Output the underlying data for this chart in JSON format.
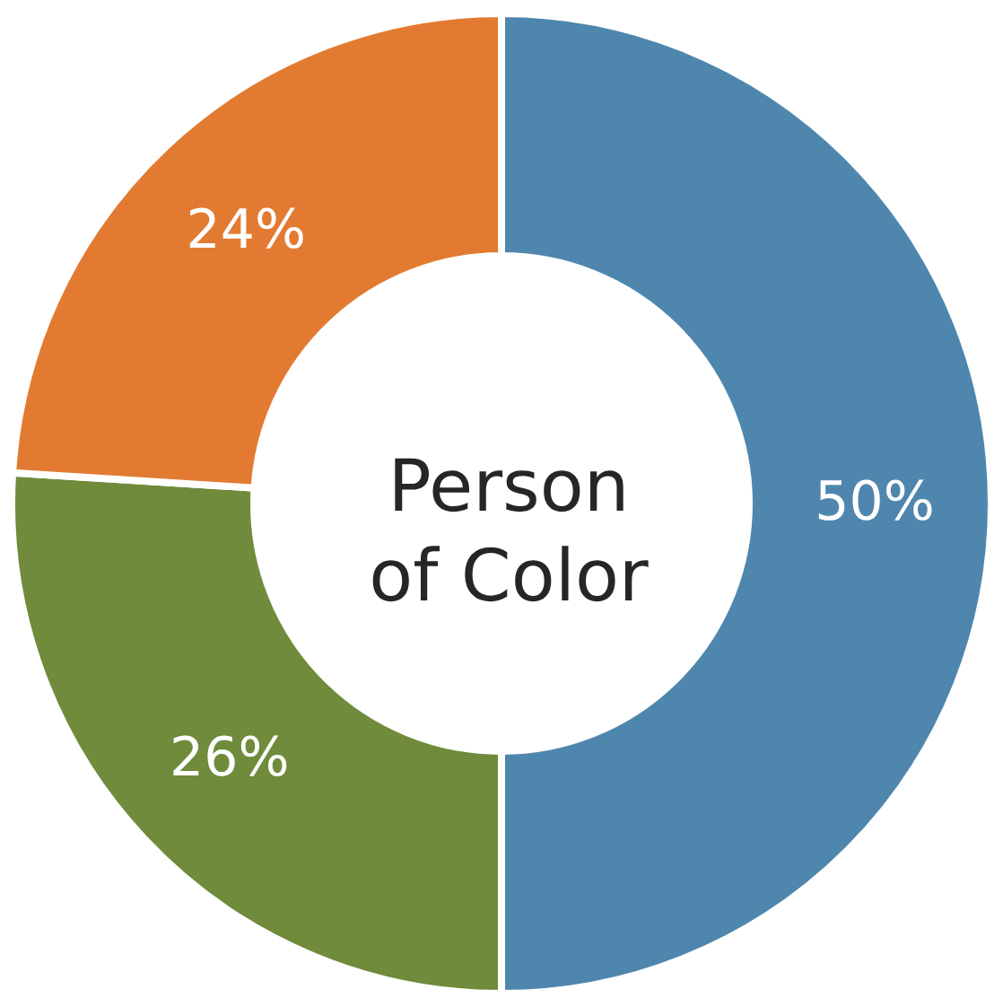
{
  "chart_data": {
    "type": "donut",
    "categories": [
      null,
      null,
      null
    ],
    "values": [
      50,
      26,
      24
    ],
    "colors": [
      "#4e86ae",
      "#6f8b3b",
      "#e27b31"
    ],
    "value_labels": [
      "50%",
      "26%",
      "24%"
    ],
    "annotations": [
      "Person of Color"
    ]
  }
}
